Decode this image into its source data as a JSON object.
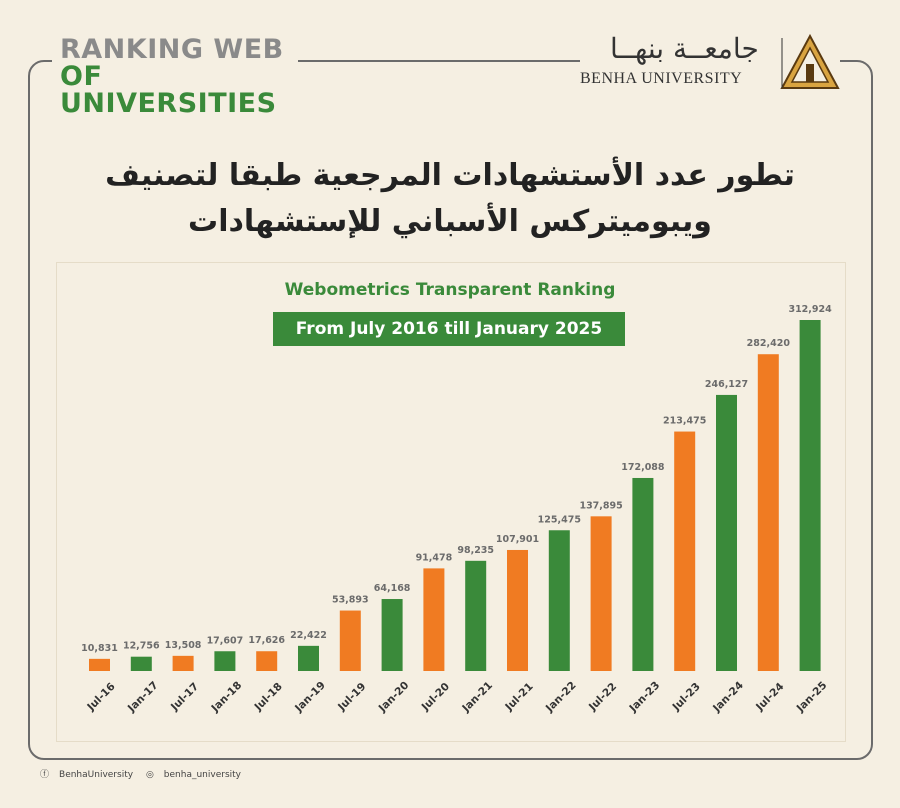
{
  "brand": {
    "line1": "RANKING WEB",
    "line2": "OF UNIVERSITIES"
  },
  "logo": {
    "arabic": "جامعــة بنهــا",
    "english": "BENHA UNIVERSITY"
  },
  "heading": {
    "line1": "تطور عدد الأستشهادات المرجعية طبقا لتصنيف",
    "line2": "ويبوميتركس الأسباني للإستشهادات"
  },
  "footer": {
    "facebook": "BenhaUniversity",
    "instagram": "benha_university"
  },
  "colors": {
    "green": "#3a8a3a",
    "orange": "#f07b22",
    "label": "#6b6b6b"
  },
  "chart_data": {
    "type": "bar",
    "title": "Webometrics Transparent Ranking",
    "subtitle": "From July 2016 till January 2025",
    "categories": [
      "Jul-16",
      "Jan-17",
      "Jul-17",
      "Jan-18",
      "Jul-18",
      "Jan-19",
      "Jul-19",
      "Jan-20",
      "Jul-20",
      "Jan-21",
      "Jul-21",
      "Jan-22",
      "Jul-22",
      "Jan-23",
      "Jul-23",
      "Jan-24",
      "Jul-24",
      "Jan-25"
    ],
    "values": [
      10831,
      12756,
      13508,
      17607,
      17626,
      22422,
      53893,
      64168,
      91478,
      98235,
      107901,
      125475,
      137895,
      172088,
      213475,
      246127,
      282420,
      312924
    ],
    "labels": [
      "10,831",
      "12,756",
      "13,508",
      "17,607",
      "17,626",
      "22,422",
      "53,893",
      "64,168",
      "91,478",
      "98,235",
      "107,901",
      "125,475",
      "137,895",
      "172,088",
      "213,475",
      "246,127",
      "282,420",
      "312,924"
    ],
    "bar_colors": [
      "#f07b22",
      "#3a8a3a",
      "#f07b22",
      "#3a8a3a",
      "#f07b22",
      "#3a8a3a",
      "#f07b22",
      "#3a8a3a",
      "#f07b22",
      "#3a8a3a",
      "#f07b22",
      "#3a8a3a",
      "#f07b22",
      "#3a8a3a",
      "#f07b22",
      "#3a8a3a",
      "#f07b22",
      "#3a8a3a"
    ],
    "ylim": [
      0,
      312924
    ],
    "grid": false,
    "legend": "none"
  }
}
